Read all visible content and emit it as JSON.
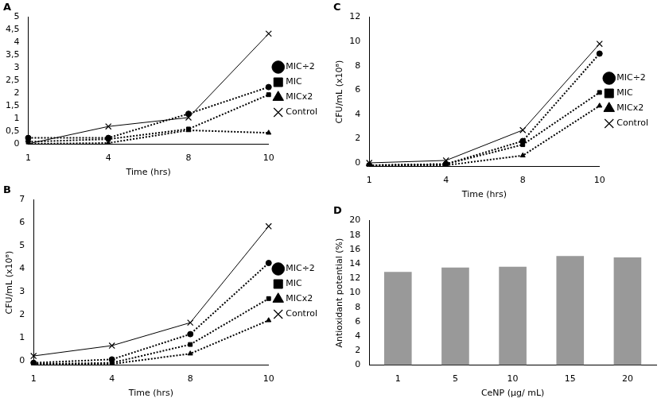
{
  "chart_data": [
    {
      "type": "line",
      "title": "A",
      "x_label": "Time (hrs)",
      "categories": [
        "1",
        "4",
        "8",
        "10"
      ],
      "series": [
        {
          "name": "MIC÷2",
          "color": "#000000",
          "marker": "circle",
          "line_style": "dotted",
          "values": [
            0.25,
            0.25,
            1.2,
            2.25
          ]
        },
        {
          "name": "MIC",
          "color": "#000000",
          "marker": "square",
          "line_style": "dotted",
          "values": [
            0.1,
            0.2,
            0.6,
            1.95
          ]
        },
        {
          "name": "MICx2",
          "color": "#000000",
          "marker": "triangle",
          "line_style": "dotted",
          "values": [
            0.02,
            0.05,
            0.55,
            0.45
          ]
        },
        {
          "name": "Control",
          "color": "#000000",
          "marker": "x",
          "line_style": "solid",
          "values": [
            0.02,
            0.7,
            1.05,
            4.35
          ]
        }
      ],
      "ylim": [
        0,
        5
      ],
      "yticks": [
        0,
        {
          "value": 0.5,
          "label": "0,5"
        },
        1,
        {
          "value": 1.5,
          "label": "1,5"
        },
        2,
        {
          "value": 2.5,
          "label": "2,5"
        },
        3,
        {
          "value": 3.5,
          "label": "3,5"
        },
        4,
        {
          "value": 4.5,
          "label": "4,5"
        },
        5
      ],
      "grid": false,
      "legend": "right"
    },
    {
      "type": "line",
      "title": "B",
      "x_label": "Time (hrs)",
      "y_label": "CFU/mL (x10⁸)",
      "categories": [
        "1",
        "4",
        "8",
        "10"
      ],
      "series": [
        {
          "name": "MIC÷2",
          "color": "#000000",
          "marker": "circle",
          "line_style": "dotted",
          "values": [
            -0.1,
            0.05,
            1.15,
            4.25
          ]
        },
        {
          "name": "MIC",
          "color": "#000000",
          "marker": "square",
          "line_style": "dotted",
          "values": [
            -0.15,
            -0.1,
            0.7,
            2.7
          ]
        },
        {
          "name": "MICx2",
          "color": "#000000",
          "marker": "triangle",
          "line_style": "dotted",
          "values": [
            -0.15,
            -0.15,
            0.3,
            1.75
          ]
        },
        {
          "name": "Control",
          "color": "#000000",
          "marker": "x",
          "line_style": "solid",
          "values": [
            0.2,
            0.65,
            1.65,
            5.85
          ]
        }
      ],
      "ylim": [
        -0.2,
        7
      ],
      "yticks": [
        0,
        1,
        2,
        3,
        4,
        5,
        6,
        7
      ],
      "grid": false,
      "legend": "right"
    },
    {
      "type": "line",
      "title": "C",
      "x_label": "Time (hrs)",
      "y_label": "CFU/mL (x10⁸)",
      "categories": [
        "1",
        "4",
        "8",
        "10"
      ],
      "series": [
        {
          "name": "MIC÷2",
          "color": "#000000",
          "marker": "circle",
          "line_style": "dotted",
          "values": [
            -0.2,
            -0.1,
            1.8,
            9.0
          ]
        },
        {
          "name": "MIC",
          "color": "#000000",
          "marker": "square",
          "line_style": "dotted",
          "values": [
            -0.2,
            -0.1,
            1.5,
            5.8
          ]
        },
        {
          "name": "MICx2",
          "color": "#000000",
          "marker": "triangle",
          "line_style": "dotted",
          "values": [
            -0.2,
            -0.2,
            0.6,
            4.7
          ]
        },
        {
          "name": "Control",
          "color": "#000000",
          "marker": "x",
          "line_style": "solid",
          "values": [
            0,
            0.2,
            2.7,
            9.8
          ]
        }
      ],
      "ylim": [
        -0.3,
        12
      ],
      "yticks": [
        0,
        2,
        4,
        6,
        8,
        10,
        12
      ],
      "grid": false,
      "legend": "right"
    },
    {
      "type": "bar",
      "title": "D",
      "x_label": "CeNP (µg/ mL)",
      "y_label": "Antioxidant potential (%)",
      "categories": [
        "1",
        "5",
        "10",
        "15",
        "20"
      ],
      "values": [
        12.9,
        13.5,
        13.6,
        15.1,
        14.9
      ],
      "color": "#999999",
      "ylim": [
        0,
        20
      ],
      "yticks": [
        0,
        2,
        4,
        6,
        8,
        10,
        12,
        14,
        16,
        18,
        20
      ],
      "grid": false
    }
  ]
}
